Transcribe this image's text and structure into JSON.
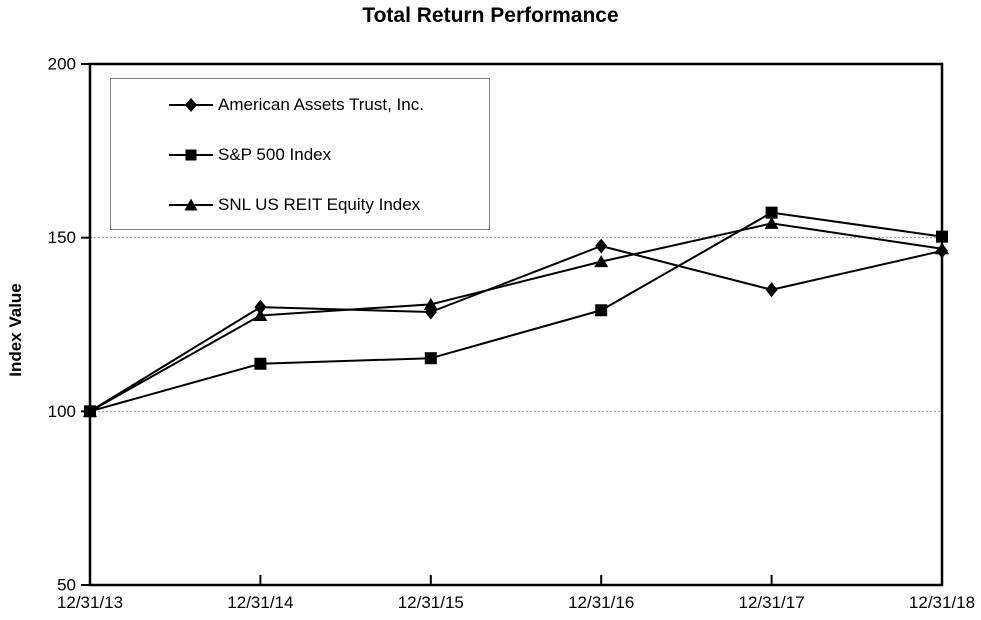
{
  "chart_data": {
    "type": "line",
    "title": "Total Return Performance",
    "xlabel": "",
    "ylabel": "Index Value",
    "categories": [
      "12/31/13",
      "12/31/14",
      "12/31/15",
      "12/31/16",
      "12/31/17",
      "12/31/18"
    ],
    "series": [
      {
        "name": "American Assets Trust, Inc.",
        "marker": "diamond",
        "values": [
          100.0,
          130.0,
          128.6,
          147.6,
          135.0,
          146.2
        ]
      },
      {
        "name": "S&P 500 Index",
        "marker": "square",
        "values": [
          100.0,
          113.7,
          115.3,
          129.1,
          157.2,
          150.3
        ]
      },
      {
        "name": "SNL US REIT Equity Index",
        "marker": "triangle",
        "values": [
          100.0,
          127.6,
          130.8,
          143.1,
          154.1,
          146.8
        ]
      }
    ],
    "ylim": [
      50,
      200
    ],
    "yticks": [
      50,
      100,
      150,
      200
    ],
    "gridlines": [
      100,
      150
    ],
    "grid": "dotted horizontal gridlines at 100 and 150",
    "legend_position": "top-left inside plot, boxed",
    "colors": {
      "series_color": "#000000",
      "background": "#ffffff",
      "gridline_color": "#999999",
      "legend_border": "#808080"
    }
  }
}
